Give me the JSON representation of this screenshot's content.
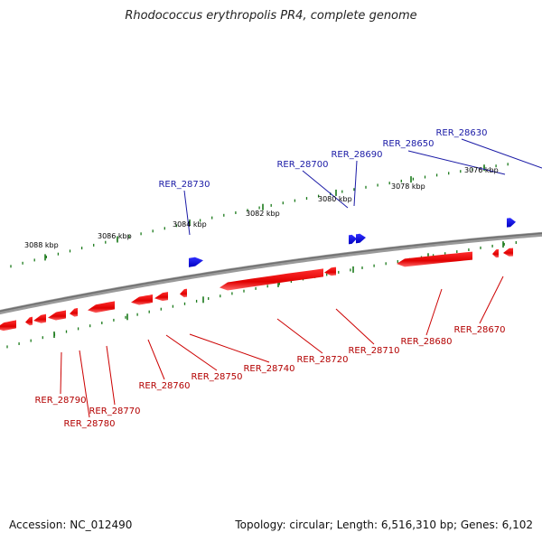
{
  "title": "Rhodococcus erythropolis PR4, complete genome",
  "footer": {
    "accession": "Accession: NC_012490",
    "summary": "Topology: circular; Length: 6,516,310 bp; Genes: 6,102"
  },
  "colors": {
    "backbone": "#808080",
    "forward_gene": "#0000ee",
    "reverse_gene": "#ee0000",
    "forward_label": "#1a1aa6",
    "reverse_label": "#b30000",
    "tick": "#1a7a1a",
    "tick_label": "#000000",
    "leader_forward": "#1a1aa6",
    "leader_reverse": "#cc0000"
  },
  "scale_labels": [
    "3088 kbp",
    "3086 kbp",
    "3084 kbp",
    "3082 kbp",
    "3080 kbp",
    "3078 kbp",
    "3076 kbp"
  ],
  "forward_genes": [
    "RER_28730",
    "RER_28700",
    "RER_28690",
    "RER_28650",
    "RER_28630"
  ],
  "reverse_genes": [
    "RER_28790",
    "RER_28780",
    "RER_28770",
    "RER_28760",
    "RER_28750",
    "RER_28740",
    "RER_28720",
    "RER_28710",
    "RER_28680",
    "RER_28670"
  ]
}
